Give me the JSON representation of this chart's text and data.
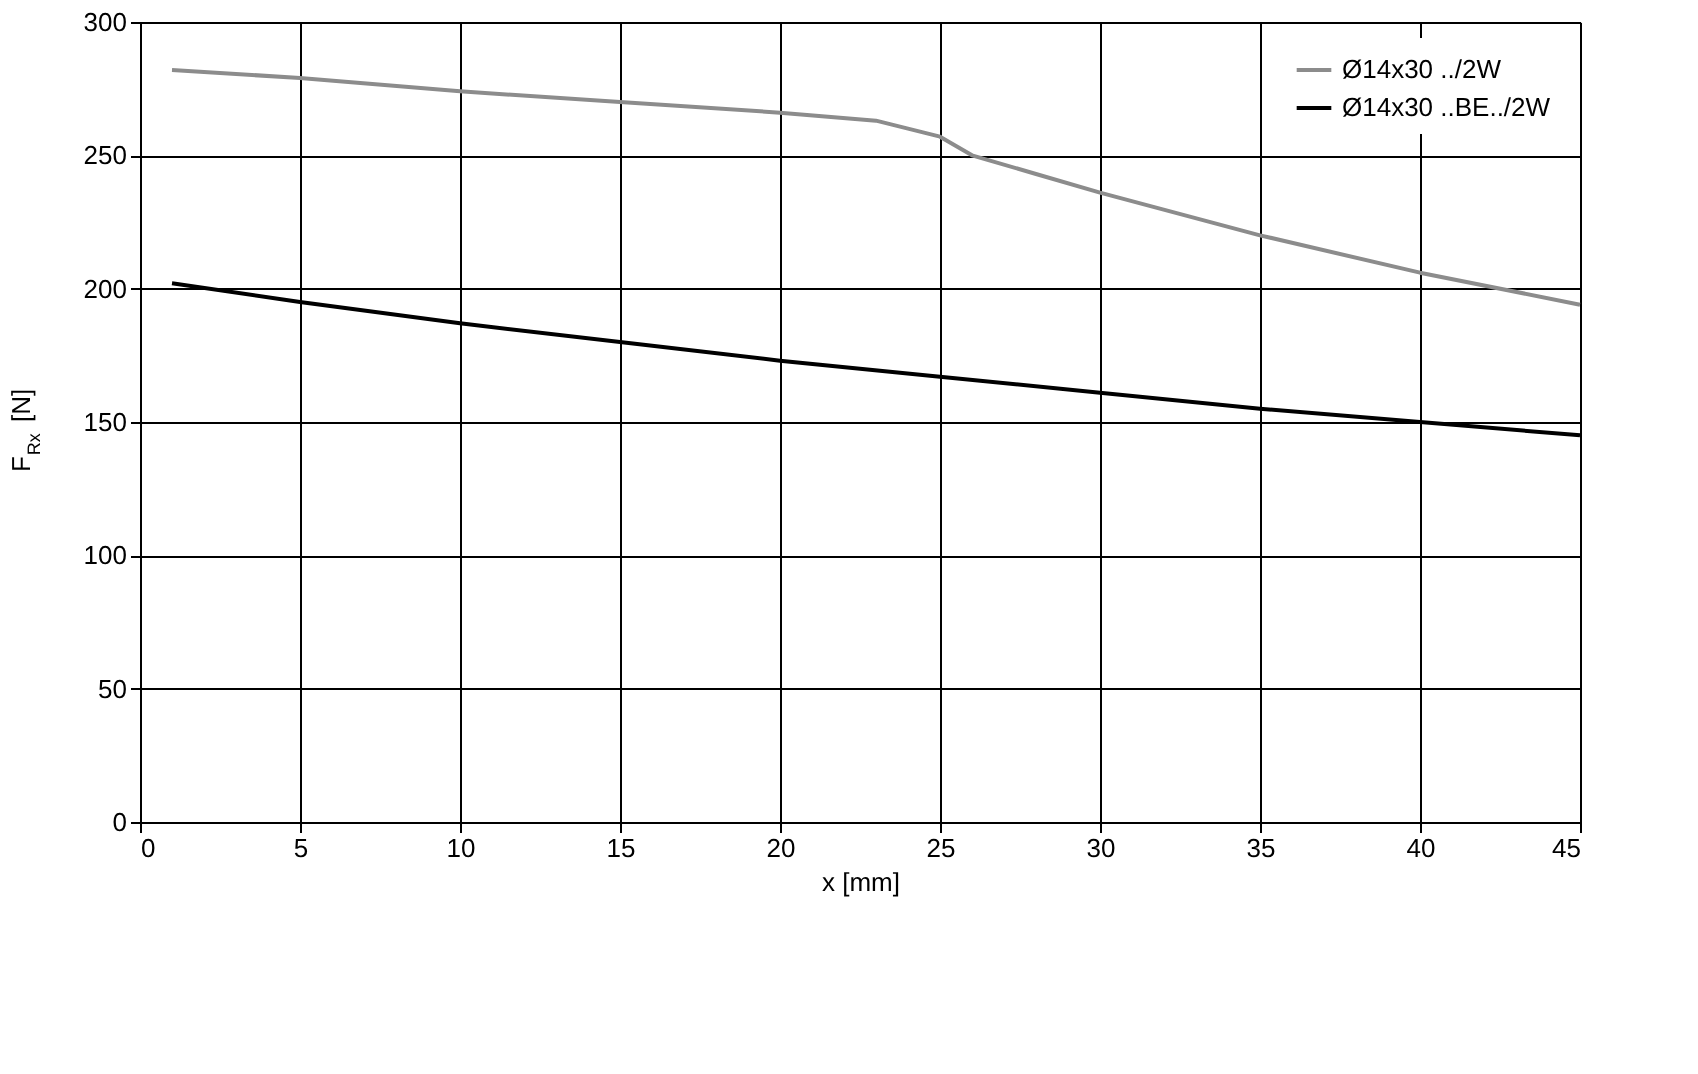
{
  "chart_data": {
    "type": "line",
    "xlabel": "x [mm]",
    "ylabel": "F$_{Rx}$ [N]",
    "xlim": [
      0,
      45
    ],
    "xticks": [
      0,
      5,
      10,
      15,
      20,
      25,
      30,
      35,
      40,
      45
    ],
    "ylim": [
      0,
      300
    ],
    "yticks": [
      0,
      50,
      100,
      150,
      200,
      250,
      300
    ],
    "grid": true,
    "legend": "top right",
    "marker": "none",
    "line_style": "solid",
    "series": [
      {
        "name": "Ø14x30 ../2W",
        "color": "#8c8c8c",
        "x": [
          1,
          5,
          10,
          15,
          20,
          23,
          24,
          25,
          26,
          28,
          30,
          35,
          40,
          45
        ],
        "values": [
          282,
          279,
          274,
          270,
          266,
          263,
          260,
          257,
          250,
          243,
          236,
          220,
          206,
          194
        ]
      },
      {
        "name": "Ø14x30 ..BE../2W",
        "color": "#000000",
        "x": [
          1,
          5,
          10,
          15,
          20,
          25,
          30,
          35,
          40,
          45
        ],
        "values": [
          202,
          195,
          187,
          180,
          173,
          167,
          161,
          155,
          150,
          145
        ]
      }
    ]
  }
}
